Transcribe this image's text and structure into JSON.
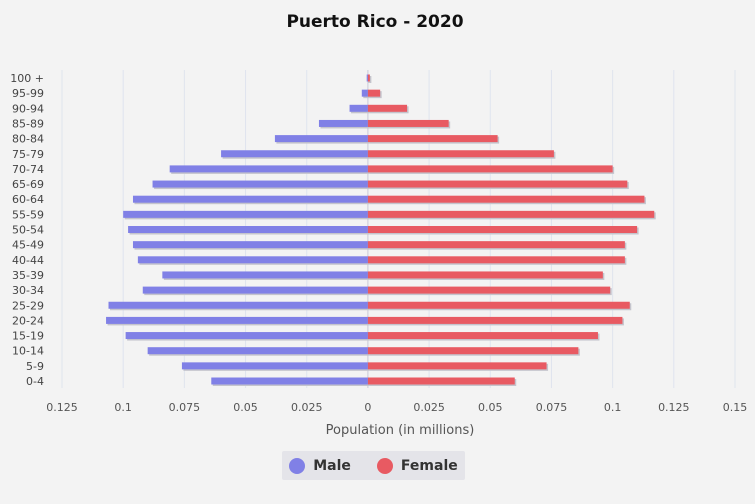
{
  "chart_data": {
    "type": "bar",
    "orientation": "horizontal",
    "title": "Puerto Rico - 2020",
    "xlabel": "Population (in millions)",
    "ylabel": "",
    "categories": [
      "0-4",
      "5-9",
      "10-14",
      "15-19",
      "20-24",
      "25-29",
      "30-34",
      "35-39",
      "40-44",
      "45-49",
      "50-54",
      "55-59",
      "60-64",
      "65-69",
      "70-74",
      "75-79",
      "80-84",
      "85-89",
      "90-94",
      "95-99",
      "100 +"
    ],
    "series": [
      {
        "name": "Male",
        "color": "#8080e6",
        "values": [
          0.064,
          0.076,
          0.09,
          0.099,
          0.107,
          0.106,
          0.092,
          0.084,
          0.094,
          0.096,
          0.098,
          0.1,
          0.096,
          0.088,
          0.081,
          0.06,
          0.038,
          0.02,
          0.0075,
          0.0025,
          0.0005
        ]
      },
      {
        "name": "Female",
        "color": "#e85a62",
        "values": [
          0.06,
          0.073,
          0.086,
          0.094,
          0.104,
          0.107,
          0.099,
          0.096,
          0.105,
          0.105,
          0.11,
          0.117,
          0.113,
          0.106,
          0.1,
          0.076,
          0.053,
          0.033,
          0.016,
          0.005,
          0.0008
        ]
      }
    ],
    "xlim": [
      -0.125,
      0.15
    ],
    "xticks": [
      -0.125,
      -0.1,
      -0.075,
      -0.05,
      -0.025,
      0,
      0.025,
      0.05,
      0.075,
      0.1,
      0.125,
      0.15
    ],
    "xtick_labels": [
      "0.125",
      "0.1",
      "0.075",
      "0.05",
      "0.025",
      "0",
      "0.025",
      "0.05",
      "0.075",
      "0.1",
      "0.125",
      "0.15"
    ],
    "grid": true,
    "legend": {
      "position": "bottom-center",
      "entries": [
        "Male",
        "Female"
      ]
    }
  }
}
